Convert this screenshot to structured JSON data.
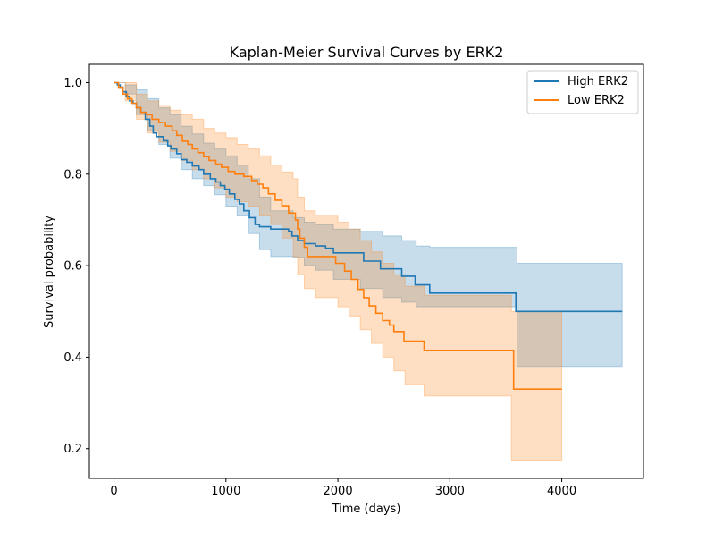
{
  "chart_data": {
    "type": "line",
    "title": "Kaplan-Meier Survival Curves by ERK2",
    "xlabel": "Time (days)",
    "ylabel": "Survival probability",
    "xlim": [
      -220,
      4730
    ],
    "ylim": [
      0.135,
      1.04
    ],
    "xticks": [
      0,
      1000,
      2000,
      3000,
      4000
    ],
    "yticks": [
      0.2,
      0.4,
      0.6,
      0.8,
      1.0
    ],
    "xtick_labels": [
      "0",
      "1000",
      "2000",
      "3000",
      "4000"
    ],
    "ytick_labels": [
      "0.2",
      "0.4",
      "0.6",
      "0.8",
      "1.0"
    ],
    "grid": false,
    "legend_position": "upper-right",
    "colors": {
      "High ERK2": "#1f77b4",
      "Low ERK2": "#ff7f0e"
    },
    "series": [
      {
        "name": "High ERK2",
        "step": [
          [
            0,
            1.0
          ],
          [
            30,
            0.995
          ],
          [
            55,
            0.99
          ],
          [
            80,
            0.98
          ],
          [
            110,
            0.97
          ],
          [
            140,
            0.96
          ],
          [
            170,
            0.955
          ],
          [
            200,
            0.945
          ],
          [
            240,
            0.935
          ],
          [
            280,
            0.92
          ],
          [
            320,
            0.905
          ],
          [
            350,
            0.89
          ],
          [
            380,
            0.882
          ],
          [
            440,
            0.873
          ],
          [
            480,
            0.862
          ],
          [
            510,
            0.855
          ],
          [
            560,
            0.845
          ],
          [
            600,
            0.832
          ],
          [
            650,
            0.826
          ],
          [
            700,
            0.818
          ],
          [
            760,
            0.81
          ],
          [
            800,
            0.8
          ],
          [
            860,
            0.79
          ],
          [
            910,
            0.783
          ],
          [
            950,
            0.775
          ],
          [
            990,
            0.767
          ],
          [
            1030,
            0.757
          ],
          [
            1080,
            0.745
          ],
          [
            1120,
            0.735
          ],
          [
            1160,
            0.72
          ],
          [
            1210,
            0.705
          ],
          [
            1260,
            0.69
          ],
          [
            1300,
            0.685
          ],
          [
            1400,
            0.68
          ],
          [
            1560,
            0.675
          ],
          [
            1590,
            0.665
          ],
          [
            1640,
            0.655
          ],
          [
            1700,
            0.648
          ],
          [
            1800,
            0.643
          ],
          [
            1890,
            0.638
          ],
          [
            1960,
            0.628
          ],
          [
            2230,
            0.61
          ],
          [
            2380,
            0.593
          ],
          [
            2570,
            0.577
          ],
          [
            2690,
            0.558
          ],
          [
            2820,
            0.54
          ],
          [
            3590,
            0.5
          ],
          [
            4540,
            0.5
          ]
        ],
        "ci_lower": [
          [
            0,
            1.0
          ],
          [
            100,
            0.975
          ],
          [
            200,
            0.93
          ],
          [
            300,
            0.895
          ],
          [
            400,
            0.865
          ],
          [
            500,
            0.835
          ],
          [
            600,
            0.81
          ],
          [
            700,
            0.79
          ],
          [
            800,
            0.775
          ],
          [
            900,
            0.755
          ],
          [
            1000,
            0.73
          ],
          [
            1100,
            0.71
          ],
          [
            1200,
            0.67
          ],
          [
            1300,
            0.635
          ],
          [
            1400,
            0.62
          ],
          [
            1600,
            0.618
          ],
          [
            1700,
            0.6
          ],
          [
            1800,
            0.59
          ],
          [
            1960,
            0.57
          ],
          [
            2200,
            0.55
          ],
          [
            2400,
            0.53
          ],
          [
            2570,
            0.52
          ],
          [
            2700,
            0.51
          ],
          [
            2820,
            0.51
          ],
          [
            3600,
            0.38
          ],
          [
            4540,
            0.38
          ]
        ],
        "ci_upper": [
          [
            0,
            1.0
          ],
          [
            100,
            0.995
          ],
          [
            200,
            0.985
          ],
          [
            300,
            0.965
          ],
          [
            400,
            0.945
          ],
          [
            500,
            0.93
          ],
          [
            600,
            0.905
          ],
          [
            700,
            0.888
          ],
          [
            800,
            0.868
          ],
          [
            900,
            0.855
          ],
          [
            1000,
            0.84
          ],
          [
            1100,
            0.82
          ],
          [
            1200,
            0.79
          ],
          [
            1300,
            0.75
          ],
          [
            1400,
            0.72
          ],
          [
            1600,
            0.705
          ],
          [
            1700,
            0.695
          ],
          [
            1800,
            0.69
          ],
          [
            1960,
            0.68
          ],
          [
            2200,
            0.675
          ],
          [
            2400,
            0.665
          ],
          [
            2570,
            0.655
          ],
          [
            2700,
            0.643
          ],
          [
            2820,
            0.64
          ],
          [
            3600,
            0.605
          ],
          [
            4540,
            0.605
          ]
        ]
      },
      {
        "name": "Low ERK2",
        "step": [
          [
            0,
            1.0
          ],
          [
            40,
            0.99
          ],
          [
            80,
            0.975
          ],
          [
            120,
            0.965
          ],
          [
            160,
            0.955
          ],
          [
            200,
            0.945
          ],
          [
            240,
            0.935
          ],
          [
            290,
            0.93
          ],
          [
            340,
            0.92
          ],
          [
            400,
            0.913
          ],
          [
            460,
            0.905
          ],
          [
            520,
            0.895
          ],
          [
            560,
            0.885
          ],
          [
            610,
            0.872
          ],
          [
            660,
            0.865
          ],
          [
            700,
            0.855
          ],
          [
            750,
            0.847
          ],
          [
            800,
            0.838
          ],
          [
            850,
            0.83
          ],
          [
            910,
            0.822
          ],
          [
            960,
            0.815
          ],
          [
            1020,
            0.806
          ],
          [
            1080,
            0.8
          ],
          [
            1160,
            0.795
          ],
          [
            1230,
            0.786
          ],
          [
            1280,
            0.778
          ],
          [
            1330,
            0.77
          ],
          [
            1380,
            0.757
          ],
          [
            1440,
            0.743
          ],
          [
            1500,
            0.731
          ],
          [
            1560,
            0.715
          ],
          [
            1620,
            0.7
          ],
          [
            1640,
            0.68
          ],
          [
            1660,
            0.66
          ],
          [
            1700,
            0.64
          ],
          [
            1730,
            0.62
          ],
          [
            1980,
            0.605
          ],
          [
            2060,
            0.588
          ],
          [
            2120,
            0.57
          ],
          [
            2180,
            0.548
          ],
          [
            2230,
            0.53
          ],
          [
            2280,
            0.512
          ],
          [
            2340,
            0.496
          ],
          [
            2400,
            0.48
          ],
          [
            2460,
            0.47
          ],
          [
            2500,
            0.456
          ],
          [
            2590,
            0.435
          ],
          [
            2770,
            0.415
          ],
          [
            3570,
            0.33
          ],
          [
            4000,
            0.33
          ]
        ],
        "ci_lower": [
          [
            0,
            1.0
          ],
          [
            100,
            0.96
          ],
          [
            200,
            0.92
          ],
          [
            300,
            0.89
          ],
          [
            400,
            0.87
          ],
          [
            500,
            0.85
          ],
          [
            600,
            0.83
          ],
          [
            700,
            0.81
          ],
          [
            800,
            0.79
          ],
          [
            900,
            0.77
          ],
          [
            1000,
            0.75
          ],
          [
            1100,
            0.74
          ],
          [
            1200,
            0.73
          ],
          [
            1300,
            0.71
          ],
          [
            1400,
            0.69
          ],
          [
            1500,
            0.66
          ],
          [
            1600,
            0.62
          ],
          [
            1640,
            0.58
          ],
          [
            1700,
            0.55
          ],
          [
            1800,
            0.53
          ],
          [
            2000,
            0.51
          ],
          [
            2100,
            0.49
          ],
          [
            2200,
            0.46
          ],
          [
            2300,
            0.43
          ],
          [
            2400,
            0.4
          ],
          [
            2500,
            0.37
          ],
          [
            2600,
            0.34
          ],
          [
            2770,
            0.315
          ],
          [
            3550,
            0.175
          ],
          [
            4000,
            0.175
          ]
        ],
        "ci_upper": [
          [
            0,
            1.0
          ],
          [
            100,
            1.0
          ],
          [
            200,
            0.975
          ],
          [
            300,
            0.96
          ],
          [
            400,
            0.95
          ],
          [
            500,
            0.94
          ],
          [
            600,
            0.93
          ],
          [
            700,
            0.92
          ],
          [
            800,
            0.9
          ],
          [
            900,
            0.89
          ],
          [
            1000,
            0.88
          ],
          [
            1100,
            0.865
          ],
          [
            1200,
            0.855
          ],
          [
            1300,
            0.84
          ],
          [
            1400,
            0.82
          ],
          [
            1500,
            0.805
          ],
          [
            1600,
            0.79
          ],
          [
            1640,
            0.75
          ],
          [
            1700,
            0.72
          ],
          [
            1800,
            0.71
          ],
          [
            2000,
            0.695
          ],
          [
            2100,
            0.68
          ],
          [
            2200,
            0.655
          ],
          [
            2300,
            0.63
          ],
          [
            2400,
            0.605
          ],
          [
            2500,
            0.58
          ],
          [
            2600,
            0.555
          ],
          [
            2770,
            0.535
          ],
          [
            3550,
            0.5
          ],
          [
            4000,
            0.5
          ]
        ]
      }
    ]
  }
}
